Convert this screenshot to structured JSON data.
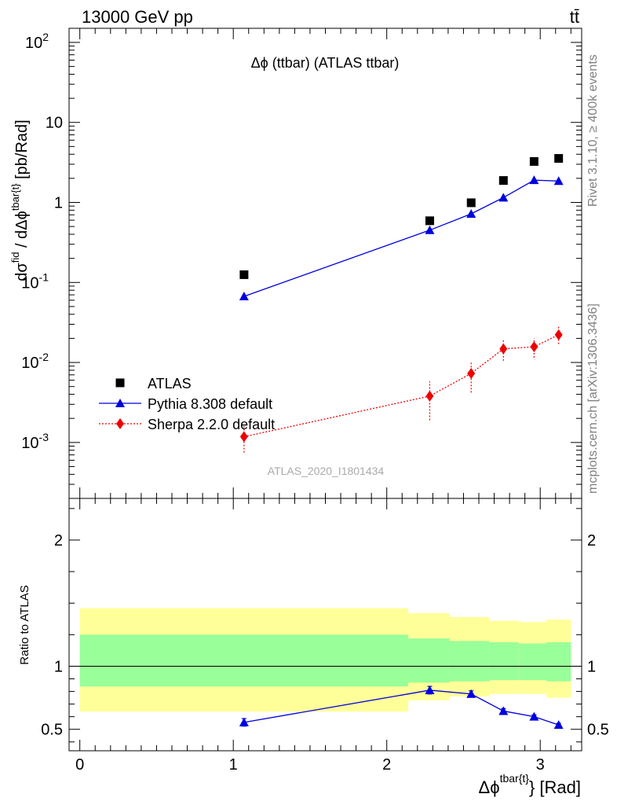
{
  "header": {
    "energy": "13000 GeV pp",
    "process": "tt̄"
  },
  "side_labels": {
    "rivet": "Rivet 3.1.10, ≥ 400k events",
    "mcplots": "mcplots.cern.ch [arXiv:1306.3436]"
  },
  "analysis_id": "ATLAS_2020_I1801434",
  "chart_data": [
    {
      "type": "scatter",
      "panel": "main",
      "title": "Δϕ (ttbar) (ATLAS ttbar)",
      "ylabel": "dσ^fid / dΔϕ^tbar{t} [pb/Rad]",
      "y_scale": "log",
      "ylim": [
        0.0002,
        150
      ],
      "xlim": [
        -0.07,
        3.27
      ],
      "y_tick_labels": [
        "10^-3",
        "10^-2",
        "10^-1",
        "1",
        "10",
        "10^2"
      ],
      "legend_position": "middle-left",
      "series": [
        {
          "name": "ATLAS",
          "color": "#000000",
          "marker": "square",
          "x": [
            1.07,
            2.28,
            2.55,
            2.76,
            2.96,
            3.12
          ],
          "y": [
            0.125,
            0.59,
            0.99,
            1.88,
            3.25,
            3.55
          ]
        },
        {
          "name": "Pythia 8.308 default",
          "color": "#0000dd",
          "marker": "triangle",
          "line": "solid",
          "x": [
            1.07,
            2.28,
            2.55,
            2.76,
            2.96,
            3.12
          ],
          "y": [
            0.067,
            0.45,
            0.72,
            1.15,
            1.9,
            1.85
          ]
        },
        {
          "name": "Sherpa 2.2.0 default",
          "color": "#ee0000",
          "marker": "diamond",
          "line": "dotted",
          "x": [
            1.07,
            2.28,
            2.55,
            2.76,
            2.96,
            3.12
          ],
          "y": [
            0.00118,
            0.0038,
            0.0073,
            0.0148,
            0.0157,
            0.0222
          ],
          "y_low": [
            0.00075,
            0.0019,
            0.0042,
            0.0105,
            0.0115,
            0.017
          ],
          "y_high": [
            0.0016,
            0.0058,
            0.0103,
            0.0195,
            0.02,
            0.0285
          ]
        }
      ]
    },
    {
      "type": "line",
      "panel": "ratio",
      "ylabel": "Ratio to ATLAS",
      "xlabel": "Δϕ^tbar{t} [Rad]",
      "ylim": [
        0.33,
        2.33
      ],
      "xlim": [
        -0.07,
        3.27
      ],
      "x_tick_labels": [
        "0",
        "1",
        "2",
        "3"
      ],
      "y_tick_labels": [
        "0.5",
        "1",
        "2"
      ],
      "reference_line": 1,
      "bands": {
        "bins": [
          [
            0,
            2.14
          ],
          [
            2.14,
            2.41
          ],
          [
            2.41,
            2.67
          ],
          [
            2.67,
            2.86
          ],
          [
            2.86,
            3.04
          ],
          [
            3.04,
            3.2
          ]
        ],
        "outer": {
          "color": "#ffff99",
          "low": [
            0.64,
            0.73,
            0.76,
            0.78,
            0.78,
            0.75
          ],
          "high": [
            1.46,
            1.42,
            1.39,
            1.36,
            1.35,
            1.37
          ]
        },
        "inner": {
          "color": "#99ff99",
          "low": [
            0.84,
            0.87,
            0.88,
            0.89,
            0.89,
            0.88
          ],
          "high": [
            1.25,
            1.22,
            1.2,
            1.19,
            1.18,
            1.19
          ]
        }
      },
      "series": [
        {
          "name": "Pythia 8.308 default",
          "color": "#0000dd",
          "marker": "triangle",
          "x": [
            1.07,
            2.28,
            2.55,
            2.76,
            2.96,
            3.12
          ],
          "y": [
            0.555,
            0.81,
            0.78,
            0.645,
            0.6,
            0.535
          ],
          "err": [
            0.03,
            0.03,
            0.025,
            0.02,
            0.015,
            0.012
          ]
        }
      ]
    }
  ]
}
